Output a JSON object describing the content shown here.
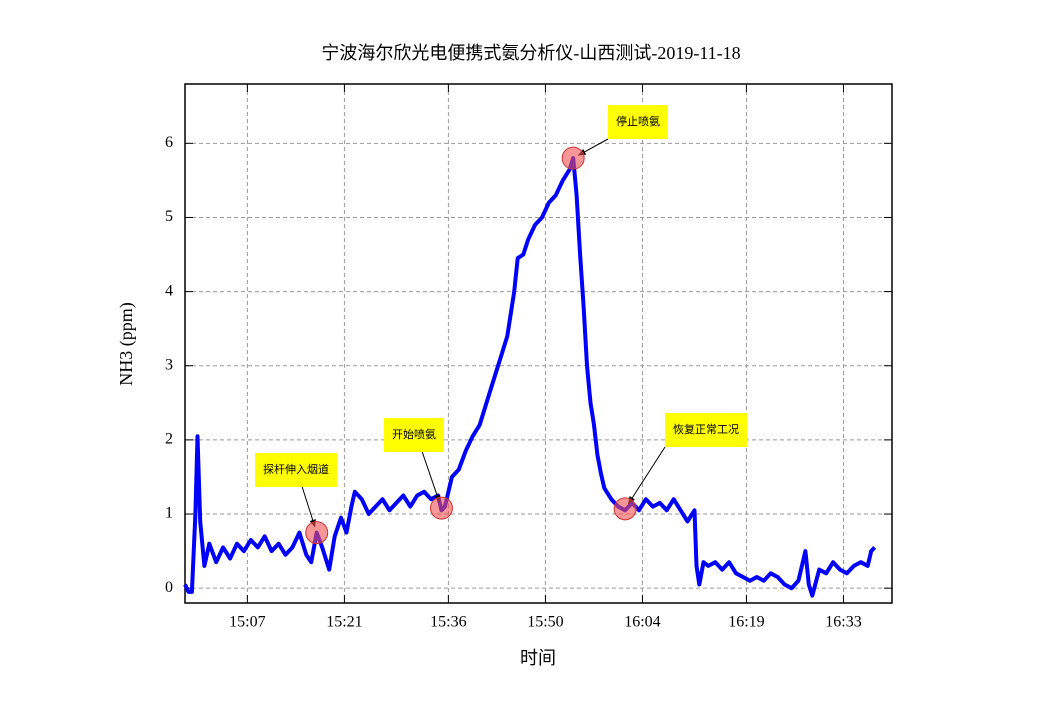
{
  "chart_data": {
    "type": "line",
    "title": "宁波海尔欣光电便携式氨分析仪-山西测试-2019-11-18",
    "x_label": "时间",
    "y_label": "NH3 (ppm)",
    "color": "#0000ff",
    "grid": true,
    "xlim": [
      898,
      1000
    ],
    "ylim": [
      -0.2,
      6.8
    ],
    "xticks": [
      {
        "value": 907,
        "label": "15:07"
      },
      {
        "value": 921,
        "label": "15:21"
      },
      {
        "value": 936,
        "label": "15:36"
      },
      {
        "value": 950,
        "label": "15:50"
      },
      {
        "value": 964,
        "label": "16:04"
      },
      {
        "value": 979,
        "label": "16:19"
      },
      {
        "value": 993,
        "label": "16:33"
      }
    ],
    "yticks": [
      0,
      1,
      2,
      3,
      4,
      5,
      6
    ],
    "x": [
      898.0,
      898.5,
      899.0,
      899.5,
      899.8,
      900.2,
      900.8,
      901.5,
      902.5,
      903.5,
      904.5,
      905.5,
      906.5,
      907.5,
      908.5,
      909.5,
      910.5,
      911.5,
      912.5,
      913.5,
      914.5,
      915.5,
      916.2,
      917.0,
      917.8,
      918.8,
      919.6,
      920.5,
      921.3,
      922.0,
      922.5,
      923.5,
      924.5,
      925.5,
      926.5,
      927.5,
      928.5,
      929.5,
      930.5,
      931.5,
      932.5,
      933.5,
      934.5,
      935.0,
      935.5,
      936.0,
      936.5,
      937.5,
      938.5,
      939.5,
      940.5,
      941.5,
      942.5,
      943.5,
      944.5,
      945.5,
      946.0,
      946.8,
      947.5,
      948.5,
      949.5,
      950.5,
      951.5,
      952.5,
      953.5,
      954.0,
      954.5,
      955.0,
      955.5,
      956.0,
      956.5,
      957.0,
      957.5,
      958.0,
      958.5,
      959.5,
      960.5,
      961.5,
      962.5,
      963.5,
      964.5,
      965.5,
      966.5,
      967.5,
      968.5,
      969.5,
      970.5,
      971.5,
      971.8,
      972.2,
      972.8,
      973.5,
      974.5,
      975.5,
      976.5,
      977.5,
      978.5,
      979.5,
      980.5,
      981.5,
      982.5,
      983.5,
      984.5,
      985.5,
      986.5,
      987.5,
      988.0,
      988.5,
      989.5,
      990.5,
      991.5,
      992.5,
      993.5,
      994.5,
      995.5,
      996.5,
      997.0,
      997.5
    ],
    "values": [
      0.05,
      -0.05,
      -0.05,
      1.0,
      2.05,
      0.9,
      0.3,
      0.6,
      0.35,
      0.55,
      0.4,
      0.6,
      0.5,
      0.65,
      0.55,
      0.7,
      0.5,
      0.6,
      0.45,
      0.55,
      0.75,
      0.45,
      0.35,
      0.75,
      0.55,
      0.25,
      0.7,
      0.95,
      0.75,
      1.1,
      1.3,
      1.2,
      1.0,
      1.1,
      1.2,
      1.05,
      1.15,
      1.25,
      1.1,
      1.25,
      1.3,
      1.2,
      1.25,
      1.05,
      1.1,
      1.3,
      1.5,
      1.6,
      1.85,
      2.05,
      2.2,
      2.5,
      2.8,
      3.1,
      3.4,
      4.0,
      4.45,
      4.5,
      4.7,
      4.9,
      5.0,
      5.2,
      5.3,
      5.5,
      5.65,
      5.8,
      5.3,
      4.5,
      3.8,
      3.0,
      2.5,
      2.2,
      1.8,
      1.55,
      1.35,
      1.2,
      1.1,
      1.05,
      1.15,
      1.05,
      1.2,
      1.1,
      1.15,
      1.05,
      1.2,
      1.05,
      0.9,
      1.05,
      0.3,
      0.05,
      0.35,
      0.3,
      0.35,
      0.25,
      0.35,
      0.2,
      0.15,
      0.1,
      0.15,
      0.1,
      0.2,
      0.15,
      0.05,
      0.0,
      0.1,
      0.5,
      0.05,
      -0.1,
      0.25,
      0.2,
      0.35,
      0.25,
      0.2,
      0.3,
      0.35,
      0.3,
      0.5,
      0.55
    ],
    "annotations": [
      {
        "text": "探杆伸入烟道",
        "x": 917.0,
        "y": 0.75
      },
      {
        "text": "开始喷氨",
        "x": 935.0,
        "y": 1.08
      },
      {
        "text": "停止喷氨",
        "x": 954.0,
        "y": 5.8
      },
      {
        "text": "恢复正常工况",
        "x": 961.5,
        "y": 1.07
      }
    ]
  }
}
